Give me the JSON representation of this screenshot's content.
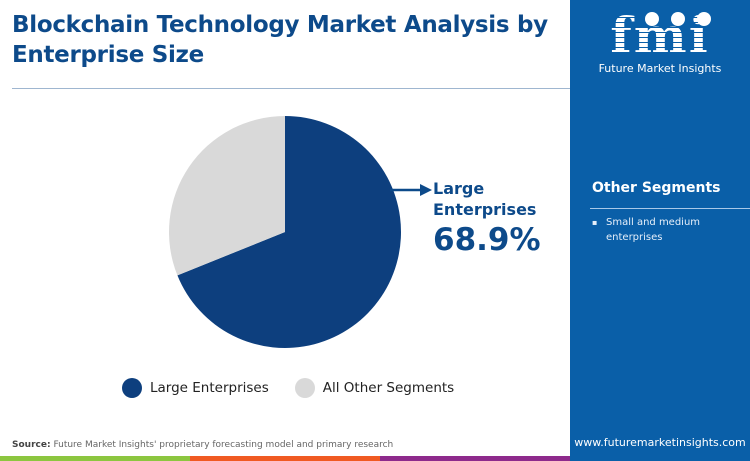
{
  "title": "Blockchain Technology Market Analysis by Enterprise Size",
  "brand": {
    "logo_text": "fmi",
    "name": "Future Market Insights",
    "url": "www.futuremarketinsights.com",
    "panel_color": "#0a5fa8"
  },
  "other_segments": {
    "title": "Other Segments",
    "items": [
      "Small and medium enterprises"
    ]
  },
  "callout": {
    "label": "Large Enterprises",
    "value": "68.9%"
  },
  "source": {
    "label": "Source:",
    "text": "Future Market Insights' proprietary forecasting model and primary research"
  },
  "footer_colors": [
    "#8cc63f",
    "#f05a22",
    "#8e2a8c"
  ],
  "chart_data": {
    "type": "pie",
    "title": "Blockchain Technology Market Analysis by Enterprise Size",
    "legend_position": "bottom",
    "slices": [
      {
        "name": "Large Enterprises",
        "value": 68.9,
        "color": "#0d3f7e"
      },
      {
        "name": "All Other Segments",
        "value": 31.1,
        "color": "#d9d9d9"
      }
    ]
  }
}
